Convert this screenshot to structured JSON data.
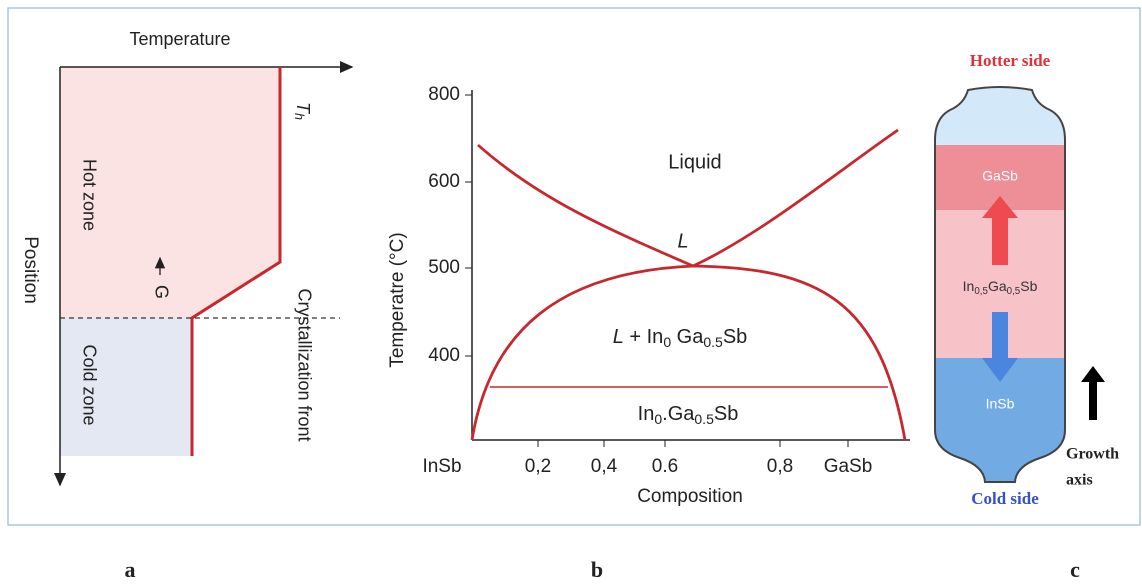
{
  "panel_a": {
    "x_axis_label": "Temperature",
    "y_axis_label": "Position",
    "th_main": "T",
    "th_sub": "h",
    "hot_zone": "Hot zone",
    "cold_zone": "Cold zone",
    "gradient_label": "G",
    "front_label": "Crystallization front"
  },
  "panel_b": {
    "y_axis_label": "Temperatre (°C)",
    "x_axis_label": "Composition",
    "yticks": [
      "800",
      "600",
      "500",
      "400"
    ],
    "xticks": [
      "InSb",
      "0,2",
      "0,4",
      "0.6",
      "0,8",
      "GaSb"
    ],
    "liquid": "Liquid",
    "liquid_solid_point": "L",
    "two_phase": [
      "L",
      " + In",
      "0",
      " Ga",
      "0.5",
      "Sb"
    ],
    "solid": [
      "In",
      "0",
      ".Ga",
      "0.5",
      "Sb"
    ]
  },
  "panel_c": {
    "hotter_side": "Hotter side",
    "top_layer": "GaSb",
    "middle_layer": [
      "In",
      "0,5",
      "Ga",
      "0,5",
      "Sb"
    ],
    "bottom_layer": "InSb",
    "cold_side": "Cold side",
    "growth_axis": [
      "Growth",
      "axis"
    ]
  },
  "captions": [
    "a",
    "b",
    "c"
  ]
}
